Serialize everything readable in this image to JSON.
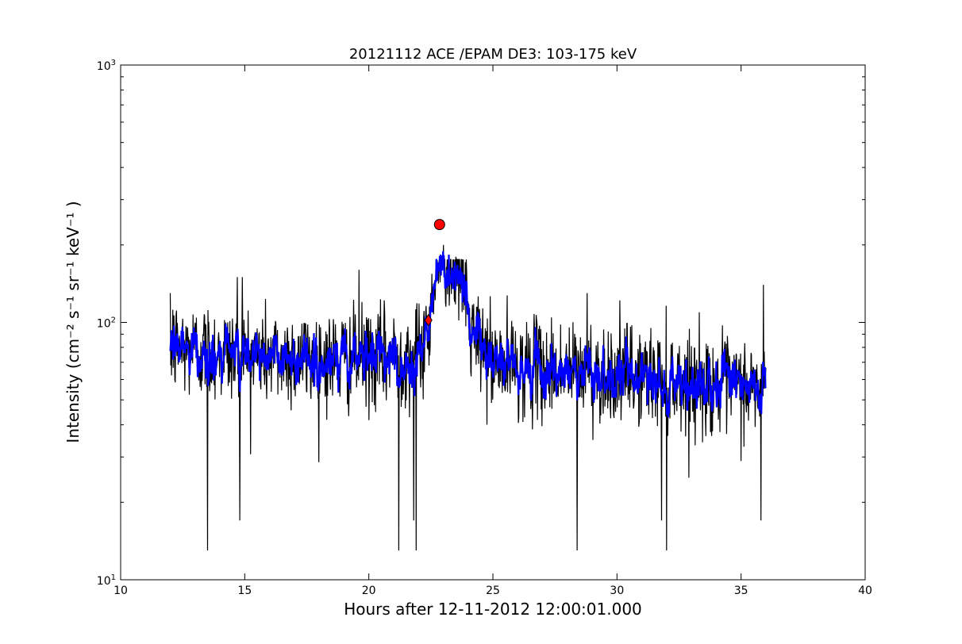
{
  "chart_data": {
    "type": "line",
    "title": "20121112 ACE /EPAM DE3: 103-175 keV",
    "xlabel": "Hours after 12-11-2012 12:00:01.000",
    "ylabel": "Intensity (cm⁻² s⁻¹ sr⁻¹ keV⁻¹ )",
    "xlim": [
      10,
      40
    ],
    "ylim": [
      10,
      1000
    ],
    "yscale": "log",
    "grid": false,
    "x_ticks": [
      "10",
      "15",
      "20",
      "25",
      "30",
      "35",
      "40"
    ],
    "x_tick_values": [
      10,
      15,
      20,
      25,
      30,
      35,
      40
    ],
    "y_ticks": [
      "10¹",
      "10²",
      "10³"
    ],
    "y_tick_values": [
      10,
      100,
      1000
    ],
    "colors": {
      "raw": "#000000",
      "smoothed": "#0000ff",
      "marker": "#ff0000"
    },
    "series": [
      {
        "role": "raw",
        "color": "#000000",
        "x_range": [
          12.0,
          36.0
        ],
        "n_points": 1440,
        "baseline_profile": [
          [
            12.0,
            80
          ],
          [
            14.0,
            76
          ],
          [
            16.0,
            74
          ],
          [
            18.0,
            72
          ],
          [
            20.0,
            72
          ],
          [
            22.0,
            75
          ],
          [
            22.5,
            100
          ],
          [
            23.0,
            140
          ],
          [
            23.5,
            120
          ],
          [
            24.0,
            95
          ],
          [
            25.0,
            70
          ],
          [
            27.0,
            66
          ],
          [
            29.0,
            64
          ],
          [
            31.0,
            62
          ],
          [
            33.0,
            58
          ],
          [
            35.0,
            56
          ],
          [
            36.0,
            54
          ]
        ],
        "spikes_high": [
          [
            12.1,
            112
          ],
          [
            14.7,
            150
          ],
          [
            14.9,
            150
          ],
          [
            19.6,
            160
          ],
          [
            23.0,
            200
          ],
          [
            23.5,
            180
          ],
          [
            28.8,
            130
          ],
          [
            35.9,
            140
          ]
        ],
        "spikes_low": [
          [
            13.5,
            13
          ],
          [
            14.8,
            17
          ],
          [
            21.2,
            13
          ],
          [
            21.8,
            17
          ],
          [
            21.9,
            13
          ],
          [
            28.4,
            13
          ],
          [
            31.8,
            17
          ],
          [
            32.0,
            13
          ],
          [
            35.8,
            17
          ]
        ]
      },
      {
        "role": "smoothed",
        "color": "#0000ff",
        "x_range": [
          12.0,
          36.0
        ]
      }
    ],
    "markers": [
      {
        "shape": "diamond",
        "x": 22.4,
        "y": 102,
        "color": "#ff0000"
      },
      {
        "shape": "circle",
        "x": 22.85,
        "y": 240,
        "color": "#ff0000"
      }
    ]
  }
}
